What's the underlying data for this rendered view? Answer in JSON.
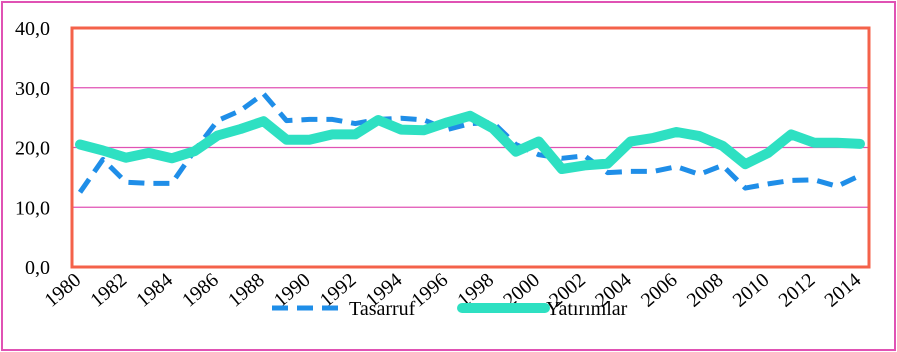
{
  "chart_data": {
    "type": "line",
    "title": "",
    "xlabel": "",
    "ylabel": "",
    "x": [
      1980,
      1981,
      1982,
      1983,
      1984,
      1985,
      1986,
      1987,
      1988,
      1989,
      1990,
      1991,
      1992,
      1993,
      1994,
      1995,
      1996,
      1997,
      1998,
      1999,
      2000,
      2001,
      2002,
      2003,
      2004,
      2005,
      2006,
      2007,
      2008,
      2009,
      2010,
      2011,
      2012,
      2013,
      2014
    ],
    "x_tick_labels": [
      "1980",
      "1982",
      "1984",
      "1986",
      "1988",
      "1990",
      "1992",
      "1994",
      "1996",
      "1998",
      "2000",
      "2002",
      "2004",
      "2006",
      "2008",
      "2010",
      "2012",
      "2014"
    ],
    "y_tick_labels": [
      "0,0",
      "10,0",
      "20,0",
      "30,0",
      "40,0"
    ],
    "ylim": [
      0,
      40
    ],
    "y_ticks": [
      0,
      10,
      20,
      30,
      40
    ],
    "grid": "horizontal",
    "legend_position": "bottom",
    "series": [
      {
        "name": "Tasarruf",
        "style": "dashed",
        "color": "#1f8ee8",
        "values": [
          12.5,
          18.0,
          14.2,
          14.0,
          14.0,
          19.5,
          24.5,
          26.2,
          29.0,
          24.5,
          24.7,
          24.7,
          24.0,
          24.7,
          24.9,
          24.6,
          23.0,
          24.0,
          24.2,
          20.5,
          18.8,
          18.2,
          18.6,
          15.8,
          16.0,
          16.0,
          16.8,
          15.5,
          17.0,
          13.2,
          13.9,
          14.5,
          14.6,
          13.5,
          15.3
        ]
      },
      {
        "name": "Yatırımlar",
        "style": "solid",
        "color": "#2ee0c2",
        "values": [
          20.5,
          19.5,
          18.3,
          19.1,
          18.2,
          19.4,
          22.0,
          23.1,
          24.4,
          21.3,
          21.3,
          22.2,
          22.2,
          24.6,
          23.0,
          22.9,
          24.2,
          25.3,
          23.2,
          19.3,
          21.0,
          16.4,
          17.0,
          17.3,
          21.0,
          21.6,
          22.6,
          21.9,
          20.3,
          17.2,
          19.1,
          22.2,
          20.8,
          20.8,
          20.6
        ]
      }
    ]
  },
  "colors": {
    "plot_border": "#f4624a",
    "gridline": "#e052b4",
    "frame_border": "#e052b4"
  }
}
